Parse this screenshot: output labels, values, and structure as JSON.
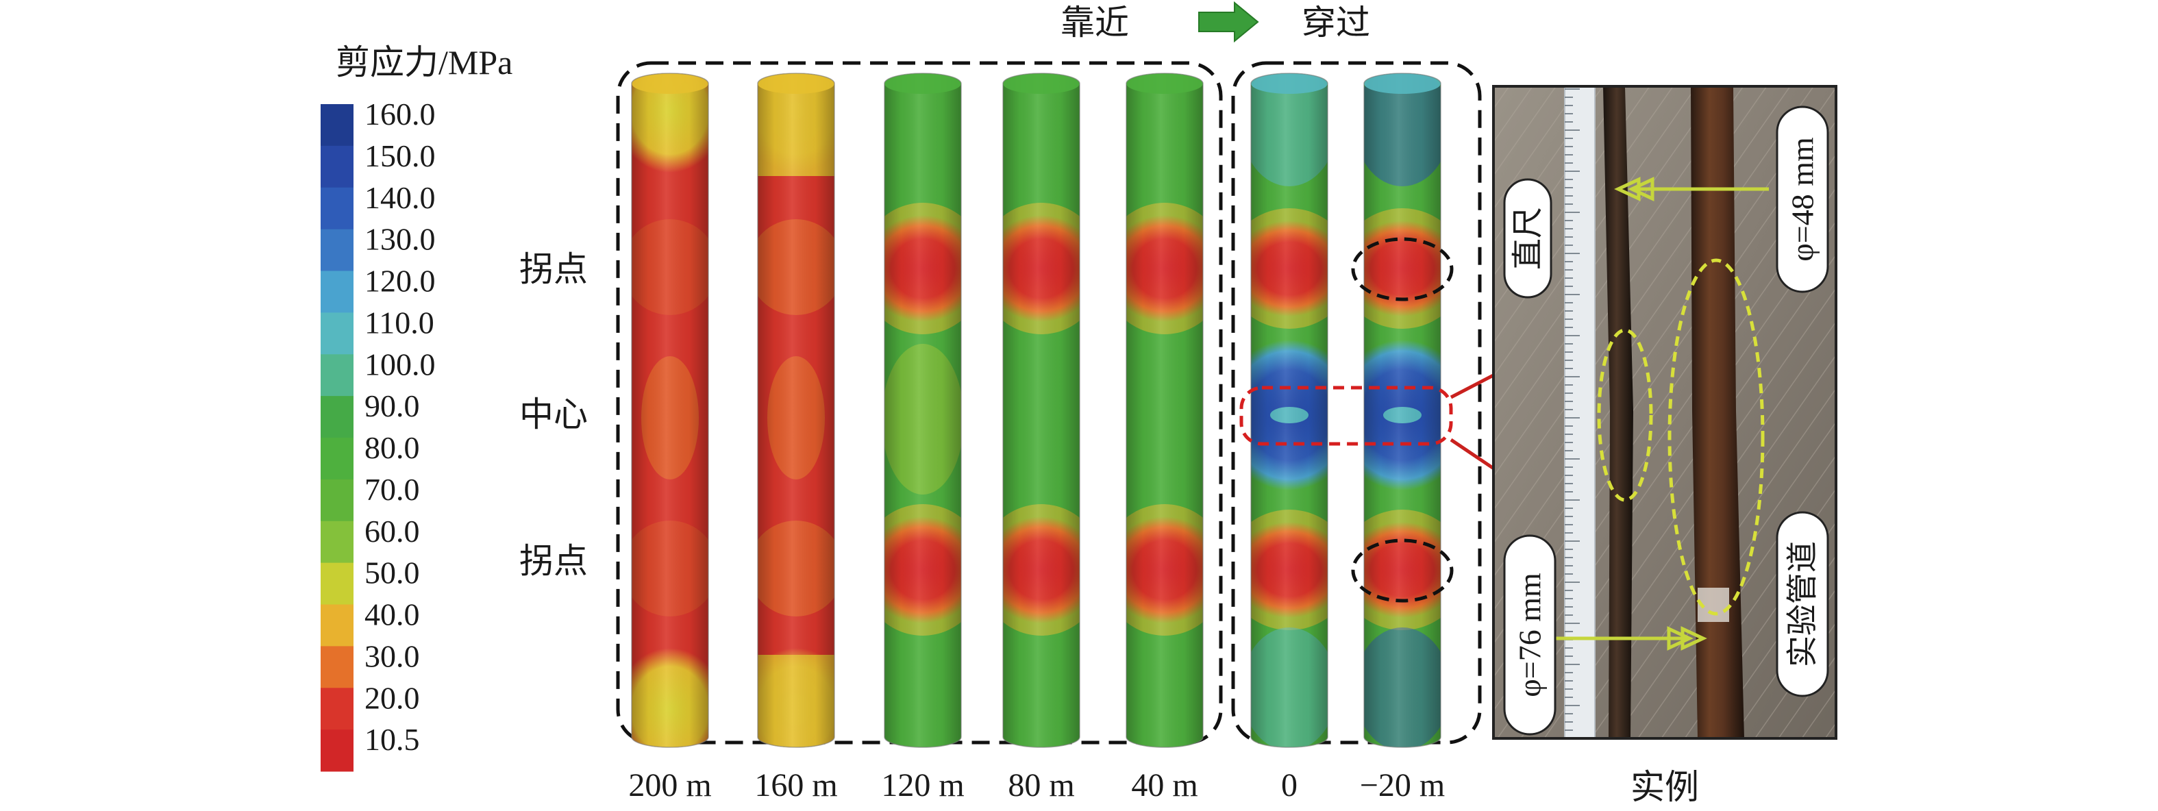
{
  "legend": {
    "title": "剪应力/MPa",
    "ticks": [
      "160.0",
      "150.0",
      "140.0",
      "130.0",
      "120.0",
      "110.0",
      "100.0",
      "90.0",
      "80.0",
      "70.0",
      "60.0",
      "50.0",
      "40.0",
      "30.0",
      "20.0",
      "10.5"
    ],
    "colors": [
      "#1f3c8f",
      "#2848a6",
      "#2f5cb8",
      "#3a78c4",
      "#4aa3cf",
      "#56b8c0",
      "#52b78e",
      "#45aa47",
      "#4eb03e",
      "#60b43a",
      "#84c13b",
      "#c8cf33",
      "#e8b22f",
      "#e5712a",
      "#d9352b",
      "#d22627"
    ]
  },
  "row_labels": {
    "inflection_top": "拐点",
    "center": "中心",
    "inflection_bottom": "拐点"
  },
  "phases": {
    "approach": "靠近",
    "arrow_icon": "right-arrow-icon",
    "cross": "穿过"
  },
  "pipes": [
    {
      "label": "200 m"
    },
    {
      "label": "160 m"
    },
    {
      "label": "120 m"
    },
    {
      "label": "80 m"
    },
    {
      "label": "40 m"
    },
    {
      "label": "0"
    },
    {
      "label": "−20 m"
    }
  ],
  "photo": {
    "caption": "实例",
    "ruler_label": "直尺",
    "d48_label": "φ=48 mm",
    "d76_label": "φ=76 mm",
    "pipe_label": "实验管道"
  }
}
